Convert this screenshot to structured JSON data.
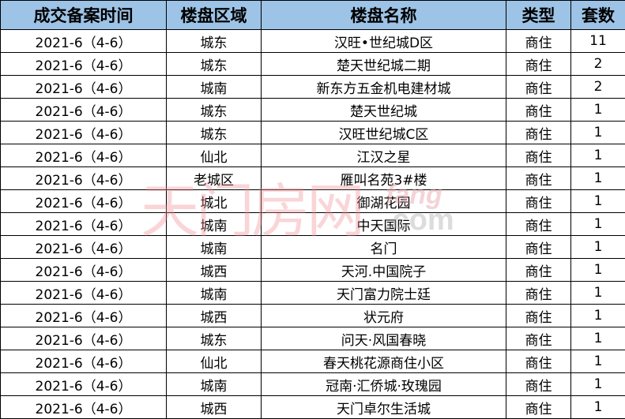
{
  "headers": [
    "成交备案时间",
    "楼盘区域",
    "楼盘名称",
    "类型",
    "套数"
  ],
  "rows": [
    [
      "2021-6（4-6）",
      "城东",
      "汉旺•世纪城D区",
      "商住",
      "11"
    ],
    [
      "2021-6（4-6）",
      "城东",
      "楚天世纪城二期",
      "商住",
      "2"
    ],
    [
      "2021-6（4-6）",
      "城南",
      "新东方五金机电建材城",
      "商住",
      "2"
    ],
    [
      "2021-6（4-6）",
      "城东",
      "楚天世纪城",
      "商住",
      "1"
    ],
    [
      "2021-6（4-6）",
      "城东",
      "汉旺世纪城C区",
      "商住",
      "1"
    ],
    [
      "2021-6（4-6）",
      "仙北",
      "江汉之星",
      "商住",
      "1"
    ],
    [
      "2021-6（4-6）",
      "老城区",
      "雁叫名苑3#楼",
      "商住",
      "1"
    ],
    [
      "2021-6（4-6）",
      "城北",
      "御湖花园",
      "商住",
      "1"
    ],
    [
      "2021-6（4-6）",
      "城南",
      "中天国际",
      "商住",
      "1"
    ],
    [
      "2021-6（4-6）",
      "城南",
      "名门",
      "商住",
      "1"
    ],
    [
      "2021-6（4-6）",
      "城西",
      "天河.中国院子",
      "商住",
      "1"
    ],
    [
      "2021-6（4-6）",
      "城南",
      "天门富力院士廷",
      "商住",
      "1"
    ],
    [
      "2021-6（4-6）",
      "城西",
      "状元府",
      "商住",
      "1"
    ],
    [
      "2021-6（4-6）",
      "城东",
      "问天·风国春晓",
      "商住",
      "1"
    ],
    [
      "2021-6（4-6）",
      "仙北",
      "春天桃花源商住小区",
      "商住",
      "1"
    ],
    [
      "2021-6（4-6）",
      "城南",
      "冠南·汇侨城·玫瑰园",
      "商住",
      "1"
    ],
    [
      "2021-6（4-6）",
      "城西",
      "天门卓尔生活城",
      "商住",
      "1"
    ]
  ],
  "watermark": {
    "cn": "天门房网",
    "fang": "fang",
    ".com": ".com"
  },
  "colors": {
    "header_bg": "#9DC3E6",
    "watermark": "#f28a92"
  }
}
